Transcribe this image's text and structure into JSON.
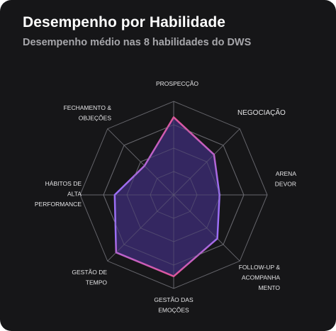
{
  "header": {
    "title": "Desempenho por Habilidade",
    "subtitle": "Desempenho médio nas 8 habilidades do DWS"
  },
  "chart_data": {
    "type": "radar",
    "title": "Desempenho por Habilidade",
    "subtitle": "Desempenho médio nas 8 habilidades do DWS",
    "axes": [
      {
        "name": "PROSPECÇÃO",
        "lines": [
          "PROSPECÇÃO"
        ]
      },
      {
        "name": "NEGOCIAÇÃO",
        "lines": [
          "NEGOCIAÇÃO"
        ]
      },
      {
        "name": "ARENA DEVOR",
        "lines": [
          "ARENA",
          "DEVOR"
        ]
      },
      {
        "name": "FOLLOW-UP & ACOMPANHAMENTO",
        "lines": [
          "FOLLOW-UP &",
          "ACOMPANHA",
          "MENTO"
        ]
      },
      {
        "name": "GESTÃO DAS EMOÇÕES",
        "lines": [
          "GESTÃO DAS",
          "EMOÇÕES"
        ]
      },
      {
        "name": "GESTÃO DE TEMPO",
        "lines": [
          "GESTÃO DE",
          "TEMPO"
        ]
      },
      {
        "name": "HÁBITOS DE ALTA PERFORMANCE",
        "lines": [
          "HÁBITOS DE",
          "ALTA",
          "PERFORMANCE"
        ]
      },
      {
        "name": "FECHAMENTO & OBJEÇÕES",
        "lines": [
          "FECHAMENTO &",
          "OBJEÇÕES"
        ]
      }
    ],
    "range": [
      0,
      100
    ],
    "grid_levels": 4,
    "series": [
      {
        "values": [
          83,
          61,
          49,
          66,
          87,
          87,
          63,
          44
        ]
      }
    ],
    "colors": {
      "card_bg": "#161618",
      "grid": "#6e6e74",
      "fill": "#3a2a6e",
      "stroke_top": "#e0559a",
      "stroke_bottom": "#9b6ef5"
    }
  }
}
